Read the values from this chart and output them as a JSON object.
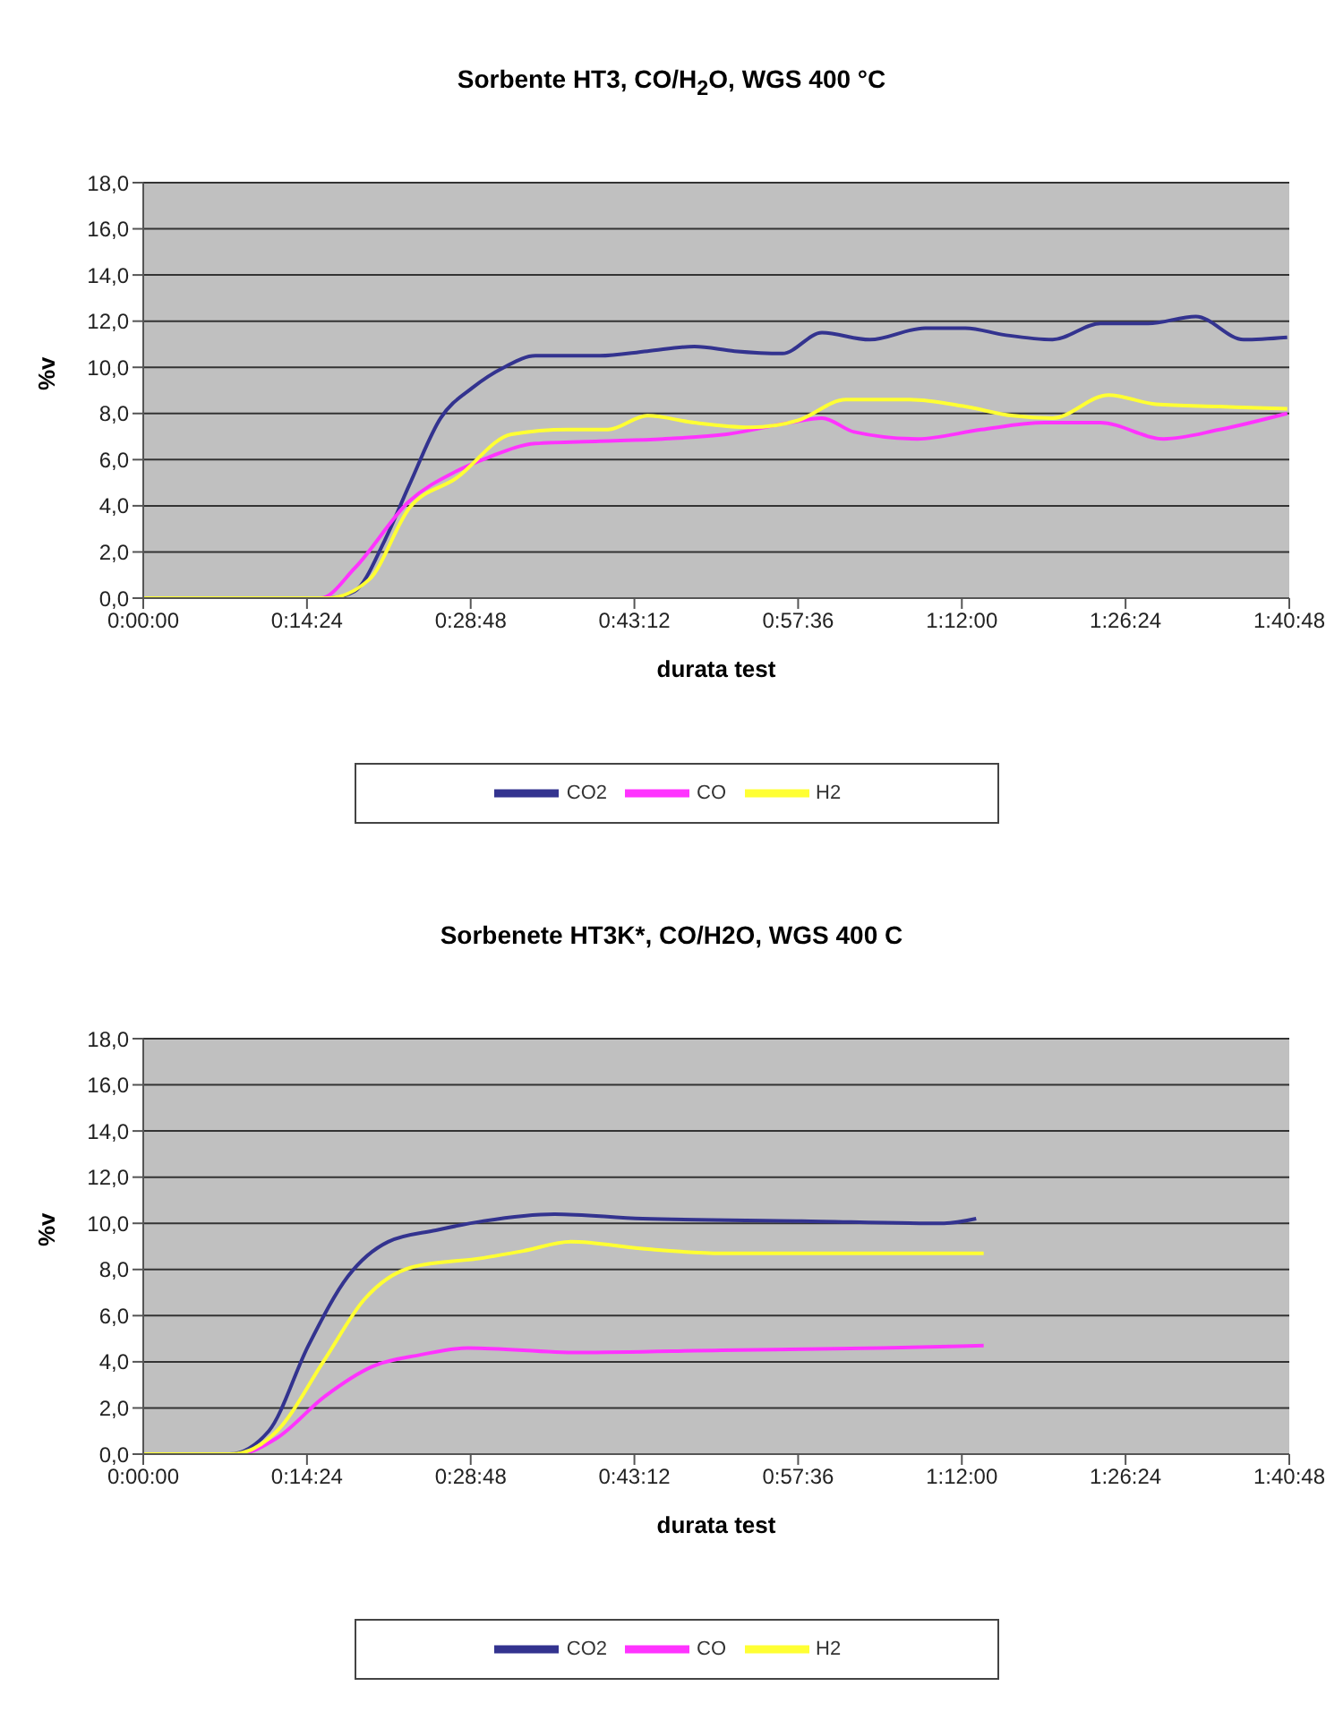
{
  "chart_data": [
    {
      "type": "line",
      "title": "Sorbente HT3, CO/H$_{2}$O, WGS 400 °C",
      "xlabel": "durata test",
      "ylabel": "%v",
      "grid": "y",
      "legend": "bottom",
      "marker": "none",
      "line_style": "solid",
      "xlim": [
        0,
        1.68
      ],
      "xticks": [
        {
          "value": 0,
          "label": "0:00:00"
        },
        {
          "value": 0.24,
          "label": "0:14:24"
        },
        {
          "value": 0.48,
          "label": "0:28:48"
        },
        {
          "value": 0.72,
          "label": "0:43:12"
        },
        {
          "value": 0.96,
          "label": "0:57:36"
        },
        {
          "value": 1.2,
          "label": "1:12:00"
        },
        {
          "value": 1.44,
          "label": "1:26:24"
        },
        {
          "value": 1.68,
          "label": "1:40:48"
        }
      ],
      "ylim": [
        0,
        18
      ],
      "yticks": [
        {
          "value": 0,
          "label": "0,0"
        },
        {
          "value": 2,
          "label": "2,0"
        },
        {
          "value": 4,
          "label": "4,0"
        },
        {
          "value": 6,
          "label": "6,0"
        },
        {
          "value": 8,
          "label": "8,0"
        },
        {
          "value": 10,
          "label": "10,0"
        },
        {
          "value": 12,
          "label": "12,0"
        },
        {
          "value": 14,
          "label": "14,0"
        },
        {
          "value": 16,
          "label": "16,0"
        },
        {
          "value": 18,
          "label": "18,0"
        }
      ],
      "series": [
        {
          "name": "CO2",
          "color": "#33338f",
          "x": [
            0.2,
            0.273,
            0.31,
            0.354,
            0.39,
            0.436,
            0.482,
            0.529,
            0.575,
            0.669,
            0.739,
            0.808,
            0.867,
            0.937,
            0.995,
            1.065,
            1.146,
            1.205,
            1.263,
            1.333,
            1.403,
            1.473,
            1.543,
            1.613,
            1.677
          ],
          "values": [
            0,
            0,
            0.3,
            2.5,
            4.9,
            7.8,
            9.1,
            10.0,
            10.5,
            10.5,
            10.7,
            10.9,
            10.7,
            10.6,
            11.5,
            11.2,
            11.7,
            11.7,
            11.4,
            11.2,
            11.9,
            11.9,
            12.2,
            11.2,
            11.3
          ]
        },
        {
          "name": "CO",
          "color": "#ff33ff",
          "x": [
            0.2,
            0.26,
            0.31,
            0.39,
            0.459,
            0.506,
            0.575,
            0.669,
            0.762,
            0.855,
            0.948,
            0.995,
            1.042,
            1.135,
            1.228,
            1.321,
            1.403,
            1.496,
            1.578,
            1.677
          ],
          "values": [
            0,
            0,
            1.3,
            4.2,
            5.5,
            6.1,
            6.7,
            6.8,
            6.9,
            7.1,
            7.6,
            7.8,
            7.2,
            6.9,
            7.3,
            7.6,
            7.6,
            6.9,
            7.3,
            8.0
          ]
        },
        {
          "name": "H2",
          "color": "#ffff33",
          "x": [
            0,
            0.1,
            0.2,
            0.27,
            0.331,
            0.39,
            0.459,
            0.54,
            0.622,
            0.681,
            0.739,
            0.808,
            0.89,
            0.96,
            1.03,
            1.123,
            1.205,
            1.275,
            1.333,
            1.415,
            1.485,
            1.578,
            1.677
          ],
          "values": [
            0,
            0,
            0,
            0,
            0.8,
            3.9,
            5.2,
            7.1,
            7.3,
            7.3,
            7.9,
            7.6,
            7.4,
            7.7,
            8.6,
            8.6,
            8.3,
            7.9,
            7.8,
            8.8,
            8.4,
            8.3,
            8.2
          ]
        }
      ]
    },
    {
      "type": "line",
      "title": "Sorbenete HT3K*, CO/H2O, WGS 400 C",
      "xlabel": "durata test",
      "ylabel": "%v",
      "grid": "y",
      "legend": "bottom",
      "marker": "none",
      "line_style": "solid",
      "xlim": [
        0,
        1.68
      ],
      "xticks": [
        {
          "value": 0,
          "label": "0:00:00"
        },
        {
          "value": 0.24,
          "label": "0:14:24"
        },
        {
          "value": 0.48,
          "label": "0:28:48"
        },
        {
          "value": 0.72,
          "label": "0:43:12"
        },
        {
          "value": 0.96,
          "label": "0:57:36"
        },
        {
          "value": 1.2,
          "label": "1:12:00"
        },
        {
          "value": 1.44,
          "label": "1:26:24"
        },
        {
          "value": 1.68,
          "label": "1:40:48"
        }
      ],
      "ylim": [
        0,
        18
      ],
      "yticks": [
        {
          "value": 0,
          "label": "0,0"
        },
        {
          "value": 2,
          "label": "2,0"
        },
        {
          "value": 4,
          "label": "4,0"
        },
        {
          "value": 6,
          "label": "6,0"
        },
        {
          "value": 8,
          "label": "8,0"
        },
        {
          "value": 10,
          "label": "10,0"
        },
        {
          "value": 12,
          "label": "12,0"
        },
        {
          "value": 14,
          "label": "14,0"
        },
        {
          "value": 16,
          "label": "16,0"
        },
        {
          "value": 18,
          "label": "18,0"
        }
      ],
      "series": [
        {
          "name": "CO2",
          "color": "#33338f",
          "x": [
            0,
            0.06,
            0.126,
            0.184,
            0.242,
            0.3,
            0.359,
            0.429,
            0.499,
            0.603,
            0.732,
            0.965,
            1.174,
            1.221
          ],
          "values": [
            0,
            0,
            0,
            1.0,
            4.7,
            7.7,
            9.2,
            9.7,
            10.1,
            10.4,
            10.2,
            10.1,
            10.0,
            10.2
          ]
        },
        {
          "name": "CO",
          "color": "#ff33ff",
          "x": [
            0,
            0.07,
            0.138,
            0.196,
            0.266,
            0.336,
            0.406,
            0.476,
            0.638,
            0.848,
            1.081,
            1.232
          ],
          "values": [
            0,
            0,
            0,
            0.7,
            2.5,
            3.8,
            4.3,
            4.6,
            4.4,
            4.5,
            4.6,
            4.7
          ]
        },
        {
          "name": "H2",
          "color": "#ffff33",
          "x": [
            0,
            0.06,
            0.13,
            0.196,
            0.266,
            0.324,
            0.394,
            0.499,
            0.557,
            0.627,
            0.732,
            0.848,
            1.081,
            1.232
          ],
          "values": [
            0,
            0,
            0,
            1.0,
            4.1,
            6.7,
            8.1,
            8.5,
            8.8,
            9.2,
            8.9,
            8.7,
            8.7,
            8.7
          ]
        }
      ]
    }
  ]
}
